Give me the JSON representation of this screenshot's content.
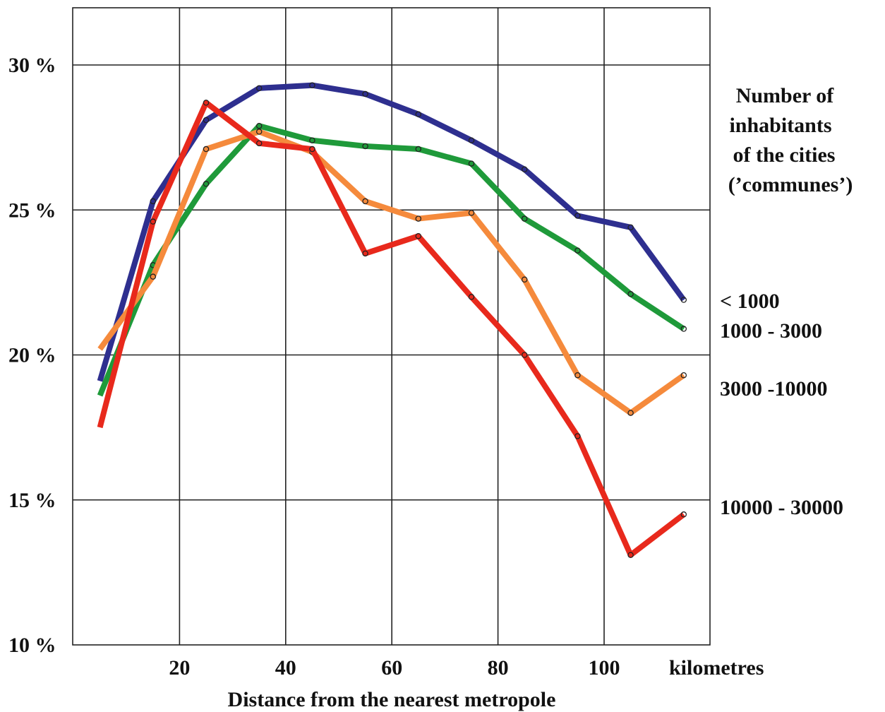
{
  "chart_data": {
    "type": "line",
    "xlabel": "Distance from the nearest metropole",
    "x_unit": "kilometres",
    "ylabel": "",
    "xlim": [
      0,
      120
    ],
    "ylim": [
      10,
      32
    ],
    "x_ticks": [
      20,
      40,
      60,
      80,
      100
    ],
    "y_ticks": [
      {
        "value": 10,
        "label": "10 %"
      },
      {
        "value": 15,
        "label": "15 %"
      },
      {
        "value": 20,
        "label": "20 %"
      },
      {
        "value": 25,
        "label": "25 %"
      },
      {
        "value": 30,
        "label": "30 %"
      }
    ],
    "grid": true,
    "legend": {
      "title": "Number of inhabitants of the cities ('communes')",
      "title_lines": [
        "Number of",
        "inhabitants",
        "of the cities",
        "(’communes’)"
      ],
      "placement": "right"
    },
    "x": [
      5,
      15,
      25,
      35,
      45,
      55,
      65,
      75,
      85,
      95,
      105,
      115
    ],
    "series": [
      {
        "name": "< 1000",
        "color": "#2e2f8f",
        "values": [
          19.1,
          25.3,
          28.1,
          29.2,
          29.3,
          29.0,
          28.3,
          27.4,
          26.4,
          24.8,
          24.4,
          21.9
        ]
      },
      {
        "name": "1000 - 3000",
        "color": "#1f9a3a",
        "values": [
          18.6,
          23.1,
          25.9,
          27.9,
          27.4,
          27.2,
          27.1,
          26.6,
          24.7,
          23.6,
          22.1,
          20.9
        ]
      },
      {
        "name": "3000 -10000",
        "color": "#f58a3c",
        "values": [
          20.2,
          22.7,
          27.1,
          27.7,
          27.0,
          25.3,
          24.7,
          24.9,
          22.6,
          19.3,
          18.0,
          19.3
        ]
      },
      {
        "name": "10000 - 30000",
        "color": "#e8291c",
        "values": [
          17.5,
          24.6,
          28.7,
          27.3,
          27.1,
          23.5,
          24.1,
          22.0,
          20.0,
          17.2,
          13.1,
          14.5
        ]
      }
    ]
  }
}
